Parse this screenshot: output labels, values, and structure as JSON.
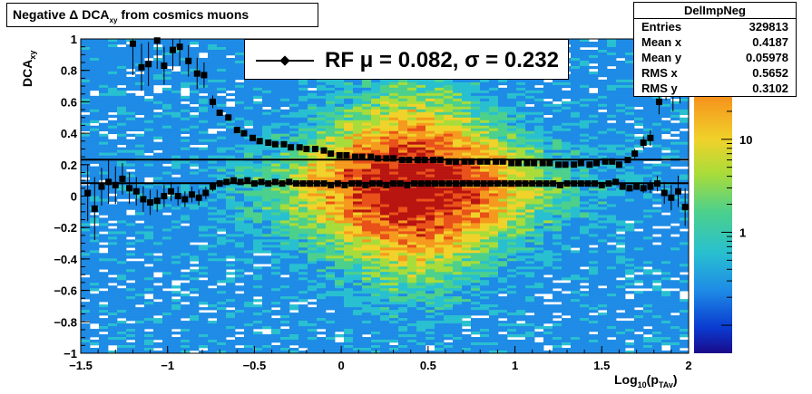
{
  "title": {
    "prefix": "Negative ",
    "delta": "Δ",
    "main": " DCA",
    "sub": "xy",
    "suffix": " from cosmics muons"
  },
  "stats": {
    "name": "DelImpNeg",
    "rows": [
      {
        "label": "Entries",
        "value": "329813"
      },
      {
        "label": "Mean x",
        "value": "0.4187"
      },
      {
        "label": "Mean y",
        "value": "0.05978"
      },
      {
        "label": "RMS x",
        "value": "0.5652"
      },
      {
        "label": "RMS y",
        "value": "0.3102"
      }
    ]
  },
  "legend": {
    "text": "RF μ =  0.082, σ =   0.232"
  },
  "axes": {
    "ylabel_main": "DCA",
    "ylabel_sub": "xy",
    "xlabel_main": "Log",
    "xlabel_sub1": "10",
    "xlabel_mid": "(p",
    "xlabel_sub2": "TAv",
    "xlabel_end": ")"
  },
  "chart_data": {
    "type": "scatter",
    "xlim": [
      -1.5,
      2
    ],
    "ylim": [
      -1,
      1
    ],
    "x_ticks": [
      "−1.5",
      "−1",
      "−0.5",
      "0",
      "0.5",
      "1",
      "1.5",
      "2"
    ],
    "y_ticks": [
      "−1",
      "−0.8",
      "−0.6",
      "−0.4",
      "−0.2",
      "0",
      "0.2",
      "0.4",
      "0.6",
      "0.8",
      "1"
    ],
    "colorbar_ticks": [
      "10",
      "1"
    ],
    "hlines": [
      0.082,
      0.232
    ],
    "series": [
      {
        "points": [
          [
            -1.46,
            0.02,
            0.18
          ],
          [
            -1.42,
            -0.08,
            0.2
          ],
          [
            -1.38,
            0.06,
            0.12
          ],
          [
            -1.34,
            0.09,
            0.14
          ],
          [
            -1.3,
            0.07,
            0.12
          ],
          [
            -1.26,
            0.11,
            0.1
          ],
          [
            -1.22,
            0.05,
            0.1
          ],
          [
            -1.18,
            0.03,
            0.09
          ],
          [
            -1.14,
            -0.02,
            0.08
          ],
          [
            -1.1,
            -0.04,
            0.08
          ],
          [
            -1.06,
            -0.03,
            0.07
          ],
          [
            -1.02,
            0.0,
            0.07
          ],
          [
            -0.98,
            0.03,
            0.06
          ],
          [
            -0.94,
            0.0,
            0.06
          ],
          [
            -0.9,
            -0.02,
            0.05
          ],
          [
            -0.86,
            0.01,
            0.05
          ],
          [
            -0.82,
            -0.01,
            0.05
          ],
          [
            -0.78,
            0.02,
            0.04
          ],
          [
            -0.74,
            0.06,
            0.03
          ],
          [
            -0.7,
            0.08,
            0.02
          ],
          [
            -0.66,
            0.09,
            0.02
          ],
          [
            -0.62,
            0.1,
            0.01
          ],
          [
            -0.58,
            0.09,
            0.01
          ],
          [
            -0.54,
            0.1,
            0.01
          ],
          [
            -0.5,
            0.08,
            0.01
          ],
          [
            -0.46,
            0.09,
            0.01
          ],
          [
            -0.42,
            0.08,
            0.0
          ],
          [
            -0.38,
            0.09,
            0.0
          ],
          [
            -0.34,
            0.08,
            0.0
          ],
          [
            -0.3,
            0.09,
            0.0
          ],
          [
            -0.26,
            0.08,
            0.0
          ],
          [
            -0.22,
            0.08,
            0.0
          ],
          [
            -0.18,
            0.08,
            0.0
          ],
          [
            -0.14,
            0.08,
            0.0
          ],
          [
            -0.1,
            0.08,
            0.0
          ],
          [
            -0.06,
            0.07,
            0.0
          ],
          [
            -0.02,
            0.08,
            0.0
          ],
          [
            0.02,
            0.07,
            0.0
          ],
          [
            0.06,
            0.08,
            0.0
          ],
          [
            0.1,
            0.08,
            0.0
          ],
          [
            0.14,
            0.07,
            0.0
          ],
          [
            0.18,
            0.08,
            0.0
          ],
          [
            0.22,
            0.08,
            0.0
          ],
          [
            0.26,
            0.07,
            0.0
          ],
          [
            0.3,
            0.08,
            0.0
          ],
          [
            0.34,
            0.08,
            0.0
          ],
          [
            0.38,
            0.07,
            0.0
          ],
          [
            0.42,
            0.08,
            0.0
          ],
          [
            0.46,
            0.08,
            0.0
          ],
          [
            0.5,
            0.08,
            0.0
          ],
          [
            0.54,
            0.08,
            0.0
          ],
          [
            0.58,
            0.08,
            0.0
          ],
          [
            0.62,
            0.08,
            0.0
          ],
          [
            0.66,
            0.08,
            0.0
          ],
          [
            0.7,
            0.08,
            0.0
          ],
          [
            0.74,
            0.08,
            0.0
          ],
          [
            0.78,
            0.08,
            0.0
          ],
          [
            0.82,
            0.08,
            0.0
          ],
          [
            0.86,
            0.08,
            0.0
          ],
          [
            0.9,
            0.08,
            0.0
          ],
          [
            0.94,
            0.08,
            0.0
          ],
          [
            0.98,
            0.08,
            0.0
          ],
          [
            1.02,
            0.08,
            0.0
          ],
          [
            1.06,
            0.08,
            0.0
          ],
          [
            1.1,
            0.08,
            0.0
          ],
          [
            1.14,
            0.08,
            0.0
          ],
          [
            1.18,
            0.08,
            0.0
          ],
          [
            1.22,
            0.08,
            0.0
          ],
          [
            1.26,
            0.07,
            0.0
          ],
          [
            1.3,
            0.08,
            0.0
          ],
          [
            1.34,
            0.08,
            0.01
          ],
          [
            1.38,
            0.08,
            0.01
          ],
          [
            1.42,
            0.08,
            0.01
          ],
          [
            1.46,
            0.08,
            0.01
          ],
          [
            1.5,
            0.07,
            0.01
          ],
          [
            1.54,
            0.08,
            0.01
          ],
          [
            1.58,
            0.09,
            0.01
          ],
          [
            1.62,
            0.06,
            0.01
          ],
          [
            1.66,
            0.05,
            0.02
          ],
          [
            1.7,
            0.06,
            0.02
          ],
          [
            1.74,
            0.05,
            0.03
          ],
          [
            1.78,
            0.06,
            0.04
          ],
          [
            1.82,
            0.08,
            0.05
          ],
          [
            1.86,
            0.02,
            0.07
          ],
          [
            1.9,
            -0.01,
            0.08
          ],
          [
            1.94,
            0.03,
            0.1
          ],
          [
            1.98,
            -0.07,
            0.12
          ]
        ]
      },
      {
        "points": [
          [
            -1.2,
            0.97,
            0.2
          ],
          [
            -1.15,
            0.82,
            0.15
          ],
          [
            -1.11,
            0.84,
            0.14
          ],
          [
            -1.06,
            0.99,
            0.18
          ],
          [
            -1.02,
            0.83,
            0.12
          ],
          [
            -0.97,
            0.93,
            0.13
          ],
          [
            -0.93,
            0.95,
            0.12
          ],
          [
            -0.88,
            0.86,
            0.1
          ],
          [
            -0.83,
            0.78,
            0.1
          ],
          [
            -0.79,
            0.77,
            0.08
          ],
          [
            -0.74,
            0.6,
            0.04
          ],
          [
            -0.7,
            0.53,
            0.02
          ],
          [
            -0.65,
            0.5,
            0.02
          ],
          [
            -0.6,
            0.42,
            0.01
          ],
          [
            -0.56,
            0.4,
            0.01
          ],
          [
            -0.51,
            0.37,
            0.01
          ],
          [
            -0.47,
            0.35,
            0.01
          ],
          [
            -0.42,
            0.34,
            0.01
          ],
          [
            -0.38,
            0.33,
            0.0
          ],
          [
            -0.33,
            0.33,
            0.0
          ],
          [
            -0.29,
            0.31,
            0.0
          ],
          [
            -0.24,
            0.31,
            0.0
          ],
          [
            -0.2,
            0.3,
            0.0
          ],
          [
            -0.15,
            0.3,
            0.0
          ],
          [
            -0.1,
            0.29,
            0.0
          ],
          [
            -0.06,
            0.27,
            0.0
          ],
          [
            -0.01,
            0.26,
            0.0
          ],
          [
            0.03,
            0.26,
            0.0
          ],
          [
            0.08,
            0.25,
            0.0
          ],
          [
            0.12,
            0.25,
            0.0
          ],
          [
            0.17,
            0.25,
            0.0
          ],
          [
            0.21,
            0.24,
            0.0
          ],
          [
            0.26,
            0.24,
            0.0
          ],
          [
            0.3,
            0.24,
            0.0
          ],
          [
            0.35,
            0.23,
            0.0
          ],
          [
            0.39,
            0.23,
            0.0
          ],
          [
            0.44,
            0.23,
            0.0
          ],
          [
            0.48,
            0.23,
            0.0
          ],
          [
            0.53,
            0.23,
            0.0
          ],
          [
            0.57,
            0.23,
            0.0
          ],
          [
            0.62,
            0.22,
            0.0
          ],
          [
            0.66,
            0.22,
            0.0
          ],
          [
            0.71,
            0.22,
            0.0
          ],
          [
            0.75,
            0.22,
            0.0
          ],
          [
            0.8,
            0.22,
            0.0
          ],
          [
            0.84,
            0.22,
            0.0
          ],
          [
            0.89,
            0.22,
            0.0
          ],
          [
            0.93,
            0.22,
            0.0
          ],
          [
            0.98,
            0.21,
            0.0
          ],
          [
            1.02,
            0.21,
            0.0
          ],
          [
            1.07,
            0.21,
            0.0
          ],
          [
            1.11,
            0.21,
            0.0
          ],
          [
            1.16,
            0.21,
            0.0
          ],
          [
            1.2,
            0.21,
            0.0
          ],
          [
            1.25,
            0.2,
            0.0
          ],
          [
            1.29,
            0.2,
            0.0
          ],
          [
            1.34,
            0.2,
            0.01
          ],
          [
            1.38,
            0.21,
            0.01
          ],
          [
            1.43,
            0.2,
            0.01
          ],
          [
            1.47,
            0.21,
            0.01
          ],
          [
            1.52,
            0.22,
            0.01
          ],
          [
            1.56,
            0.22,
            0.01
          ],
          [
            1.6,
            0.2,
            0.02
          ],
          [
            1.65,
            0.23,
            0.02
          ],
          [
            1.69,
            0.27,
            0.03
          ],
          [
            1.74,
            0.34,
            0.04
          ],
          [
            1.78,
            0.37,
            0.05
          ],
          [
            1.83,
            0.6,
            0.08
          ],
          [
            1.87,
            0.71,
            0.1
          ],
          [
            1.91,
            0.66,
            0.12
          ],
          [
            1.95,
            0.71,
            0.12
          ]
        ]
      }
    ]
  }
}
